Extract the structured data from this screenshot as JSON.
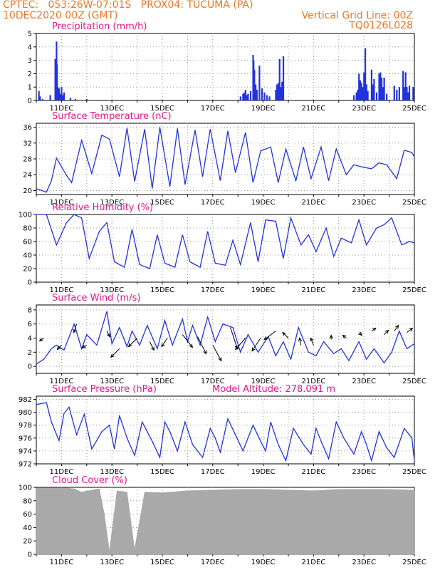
{
  "header": {
    "line1_left": "CPTEC:   053:26W-07:01S   PROX04: TUCUMA (PA)",
    "line2_left": "10DEC2020 00Z (GMT)",
    "line2_right": "Vertical Grid Line: 00Z",
    "line3_right": "TQ0126L028"
  },
  "colors": {
    "header": "#e8772a",
    "title": "#e0198c",
    "series": "#2233dd",
    "cloud": "#a9a9a9",
    "arrow": "#000000"
  },
  "model_altitude_label": "Model Altitude: 278.091 m",
  "x_tick_labels": [
    "11DEC",
    "13DEC",
    "15DEC",
    "17DEC",
    "19DEC",
    "21DEC",
    "23DEC",
    "25DEC"
  ],
  "chart_data": [
    {
      "type": "bar",
      "title": "Precipitation (mm/h)",
      "ylim": [
        0,
        5
      ],
      "yticks": [
        "0",
        "1",
        "2",
        "3",
        "4",
        "5"
      ],
      "x_days": [
        0.1,
        0.15,
        0.25,
        0.55,
        0.75,
        0.8,
        0.82,
        0.85,
        0.9,
        0.95,
        1.0,
        1.05,
        1.1,
        1.35,
        1.55,
        2.0,
        7.5,
        8.1,
        8.2,
        8.25,
        8.3,
        8.35,
        8.4,
        8.5,
        8.6,
        8.62,
        8.65,
        8.7,
        8.75,
        8.85,
        8.95,
        9.05,
        9.15,
        9.25,
        9.5,
        9.55,
        9.6,
        9.65,
        9.7,
        9.75,
        9.8,
        12.6,
        12.7,
        12.75,
        12.8,
        12.85,
        12.9,
        12.95,
        13.0,
        13.05,
        13.1,
        13.15,
        13.3,
        13.35,
        13.4,
        13.5,
        13.6,
        13.65,
        13.7,
        13.75,
        13.8,
        13.9,
        14.2,
        14.3,
        14.4,
        14.55,
        14.6,
        14.65,
        14.7,
        14.75,
        14.8,
        14.95
      ],
      "values": [
        0.7,
        0.3,
        0.1,
        0.4,
        3.1,
        4.4,
        2.7,
        1.0,
        0.9,
        0.5,
        1.0,
        0.4,
        0.6,
        0.2,
        0.1,
        0.1,
        0.05,
        0.3,
        0.5,
        0.6,
        0.8,
        0.4,
        0.5,
        0.7,
        3.4,
        3.0,
        2.3,
        1.2,
        0.8,
        2.6,
        0.9,
        0.6,
        0.4,
        0.3,
        0.8,
        1.2,
        1.3,
        3.1,
        1.0,
        1.4,
        3.3,
        0.4,
        0.6,
        0.8,
        2.0,
        1.5,
        1.3,
        1.0,
        2.1,
        3.9,
        1.2,
        0.7,
        2.3,
        1.2,
        1.6,
        0.6,
        2.0,
        2.1,
        1.7,
        1.0,
        1.7,
        0.5,
        1.1,
        0.8,
        1.0,
        2.2,
        1.0,
        2.1,
        1.0,
        0.6,
        1.1,
        1.0
      ]
    },
    {
      "type": "line",
      "title": "Surface Temperature (nC)",
      "ylim": [
        19,
        37
      ],
      "yticks": [
        "20",
        "24",
        "28",
        "32",
        "36"
      ],
      "x_days": [
        0,
        0.4,
        0.6,
        0.8,
        1.2,
        1.4,
        1.8,
        2.2,
        2.6,
        2.9,
        3.3,
        3.6,
        3.9,
        4.3,
        4.6,
        4.9,
        5.3,
        5.6,
        5.9,
        6.3,
        6.6,
        6.9,
        7.3,
        7.6,
        7.9,
        8.3,
        8.6,
        8.9,
        9.3,
        9.6,
        9.9,
        10.3,
        10.6,
        10.9,
        11.3,
        11.6,
        11.9,
        12.3,
        12.6,
        12.9,
        13.3,
        13.6,
        13.9,
        14.3,
        14.6,
        14.9,
        15.0
      ],
      "values": [
        20.5,
        19.6,
        22.5,
        28.2,
        23.8,
        22.0,
        32.7,
        24.3,
        34.0,
        33.0,
        23.5,
        35.8,
        22.3,
        35.5,
        20.5,
        36.0,
        21.0,
        35.7,
        21.5,
        35.3,
        23.5,
        35.5,
        22.5,
        35.1,
        24.5,
        34.7,
        22.0,
        30.0,
        31.0,
        22.0,
        30.5,
        22.5,
        31.0,
        23.0,
        31.0,
        22.5,
        30.5,
        24.0,
        26.5,
        26.0,
        25.5,
        27.0,
        26.5,
        23.0,
        30.2,
        29.6,
        28.5
      ]
    },
    {
      "type": "line",
      "title": "Relative Humidity (%)",
      "ylim": [
        0,
        100
      ],
      "yticks": [
        "0",
        "20",
        "40",
        "60",
        "80",
        "100"
      ],
      "x_days": [
        0,
        0.4,
        0.8,
        1.2,
        1.5,
        1.8,
        2.1,
        2.5,
        2.8,
        3.1,
        3.5,
        3.8,
        4.1,
        4.5,
        4.8,
        5.1,
        5.5,
        5.8,
        6.1,
        6.5,
        6.8,
        7.1,
        7.5,
        7.8,
        8.1,
        8.5,
        8.8,
        9.1,
        9.5,
        9.8,
        10.1,
        10.5,
        10.8,
        11.1,
        11.5,
        11.8,
        12.1,
        12.5,
        12.8,
        13.1,
        13.5,
        13.8,
        14.1,
        14.5,
        14.8,
        15.0
      ],
      "values": [
        100,
        100,
        55,
        88,
        100,
        95,
        35,
        75,
        88,
        30,
        22,
        78,
        26,
        20,
        70,
        28,
        22,
        70,
        30,
        22,
        75,
        28,
        25,
        62,
        26,
        88,
        30,
        92,
        90,
        35,
        95,
        55,
        70,
        45,
        80,
        38,
        65,
        58,
        92,
        55,
        80,
        85,
        95,
        55,
        60,
        58
      ]
    },
    {
      "type": "line",
      "title": "Surface Wind (m/s)",
      "ylim": [
        -1,
        8.7
      ],
      "yticks": [
        "0",
        "2",
        "4",
        "6",
        "8"
      ],
      "x_days": [
        0,
        0.3,
        0.6,
        0.8,
        1.1,
        1.5,
        1.8,
        2.0,
        2.4,
        2.8,
        3.0,
        3.3,
        3.6,
        3.8,
        4.1,
        4.4,
        4.8,
        5.1,
        5.4,
        5.8,
        6.0,
        6.2,
        6.5,
        6.8,
        7.1,
        7.4,
        7.8,
        8.1,
        8.4,
        8.8,
        9.2,
        9.5,
        9.8,
        10.1,
        10.4,
        10.8,
        11.1,
        11.4,
        11.8,
        12.1,
        12.4,
        12.8,
        13.1,
        13.4,
        13.8,
        14.1,
        14.4,
        14.7,
        15.0
      ],
      "values": [
        0.3,
        1.0,
        2.5,
        3.0,
        2.3,
        6.0,
        2.5,
        4.5,
        3.0,
        7.8,
        3.2,
        5.5,
        2.8,
        5.0,
        3.0,
        5.8,
        2.5,
        6.5,
        3.0,
        6.7,
        3.5,
        5.8,
        3.0,
        7.0,
        3.5,
        6.0,
        5.5,
        2.0,
        4.5,
        2.0,
        4.2,
        1.5,
        3.5,
        1.0,
        5.5,
        2.0,
        1.5,
        3.5,
        1.8,
        2.5,
        0.8,
        3.5,
        1.0,
        2.5,
        0.5,
        2.0,
        5.0,
        2.5,
        3.2
      ],
      "arrows": {
        "x_days": [
          0.3,
          1.0,
          1.6,
          2.0,
          2.8,
          3.3,
          4.0,
          4.5,
          5.2,
          5.8,
          6.4,
          7.0,
          7.7,
          8.3,
          8.9,
          9.5,
          10.0,
          10.5,
          11.0,
          11.7,
          12.3,
          12.8,
          13.3,
          13.8,
          14.2,
          14.7
        ],
        "y_values": [
          4.0,
          3.0,
          6.0,
          3.0,
          5.0,
          2.5,
          4.0,
          3.5,
          4.0,
          4.5,
          4.2,
          3.0,
          5.5,
          4.0,
          4.0,
          5.0,
          4.0,
          3.0,
          3.0,
          3.8,
          4.0,
          4.8,
          5.0,
          4.5,
          5.0,
          4.8
        ],
        "u": [
          -6,
          -6,
          -4,
          -6,
          4,
          -12,
          -12,
          6,
          -8,
          14,
          12,
          12,
          10,
          -14,
          -12,
          -16,
          -8,
          -2,
          -4,
          0,
          -5,
          4,
          6,
          6,
          6,
          8
        ],
        "v": [
          4,
          6,
          12,
          4,
          8,
          12,
          12,
          12,
          12,
          18,
          24,
          22,
          30,
          16,
          18,
          12,
          -8,
          -10,
          -10,
          -6,
          -4,
          4,
          -4,
          -6,
          -8,
          -6
        ]
      }
    },
    {
      "type": "line",
      "title": "Surface Pressure (hPa)",
      "ylim": [
        972,
        982.5
      ],
      "yticks": [
        "972",
        "974",
        "976",
        "978",
        "980",
        "982"
      ],
      "x_days": [
        0,
        0.4,
        0.6,
        0.9,
        1.1,
        1.3,
        1.6,
        1.9,
        2.2,
        2.6,
        2.9,
        3.1,
        3.3,
        3.6,
        3.9,
        4.2,
        4.6,
        4.9,
        5.1,
        5.3,
        5.6,
        5.9,
        6.2,
        6.6,
        6.9,
        7.1,
        7.3,
        7.6,
        7.9,
        8.2,
        8.6,
        8.9,
        9.1,
        9.3,
        9.6,
        9.9,
        10.2,
        10.6,
        10.9,
        11.1,
        11.3,
        11.6,
        11.9,
        12.2,
        12.6,
        12.9,
        13.1,
        13.3,
        13.6,
        13.9,
        14.2,
        14.6,
        14.9,
        15.0
      ],
      "values": [
        981.2,
        981.5,
        978.5,
        975.6,
        979.8,
        980.8,
        976.5,
        979.7,
        974.3,
        977.0,
        978.0,
        974.3,
        979.5,
        976.0,
        973.3,
        978.5,
        975.5,
        973.0,
        978.5,
        977.0,
        974.0,
        978.5,
        975.0,
        973.0,
        977.5,
        976.0,
        973.8,
        979.0,
        976.5,
        974.0,
        978.0,
        975.5,
        974.0,
        978.5,
        975.0,
        972.5,
        977.5,
        975.0,
        973.5,
        977.5,
        975.5,
        972.8,
        978.5,
        976.0,
        973.5,
        977.0,
        975.0,
        972.5,
        977.0,
        974.5,
        973.0,
        977.5,
        976.0,
        972.5
      ]
    },
    {
      "type": "bar",
      "title": "Cloud Cover (%)",
      "ylim": [
        0,
        100
      ],
      "yticks": [
        "0",
        "20",
        "40",
        "60",
        "80",
        "100"
      ],
      "segments": {
        "x_days": [
          0,
          1.2,
          1.5,
          1.8,
          2.5,
          2.7,
          2.9,
          3.2,
          3.6,
          3.9,
          4.3,
          5.0,
          6.0,
          7.0,
          8.0,
          9.0,
          10.0,
          11.0,
          12.0,
          13.0,
          14.0,
          15.0
        ],
        "values": [
          99,
          99,
          98,
          93,
          98,
          60,
          5,
          95,
          93,
          8,
          93,
          92,
          95,
          96,
          97,
          97,
          96,
          95,
          97,
          97,
          97,
          96
        ]
      }
    }
  ]
}
